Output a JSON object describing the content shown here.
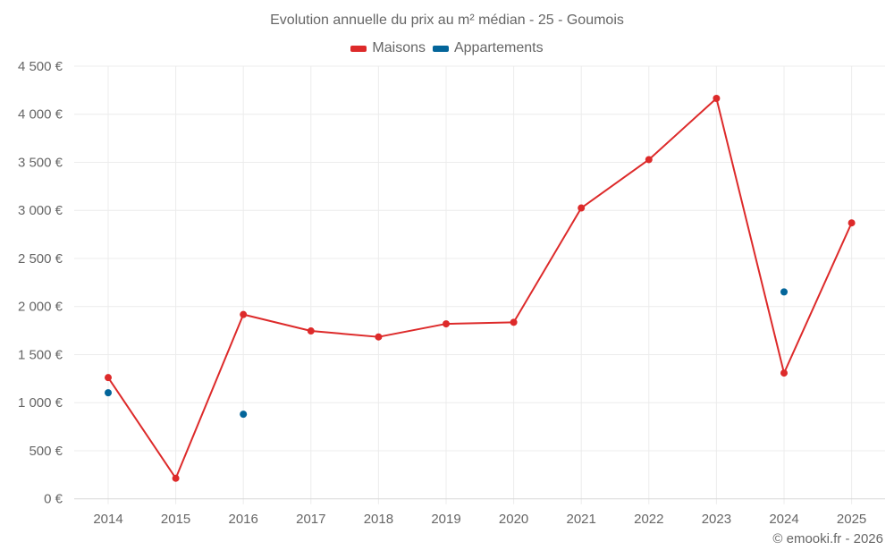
{
  "chart_data": {
    "type": "line",
    "title": "Evolution annuelle du prix au m² médian - 25 - Goumois",
    "xlabel": "",
    "ylabel": "",
    "categories": [
      "2014",
      "2015",
      "2016",
      "2017",
      "2018",
      "2019",
      "2020",
      "2021",
      "2022",
      "2023",
      "2024",
      "2025"
    ],
    "series": [
      {
        "name": "Maisons",
        "color": "#dd2a2a",
        "values": [
          1261,
          214,
          1917,
          1746,
          1684,
          1820,
          1836,
          3025,
          3528,
          4165,
          1308,
          2870
        ]
      },
      {
        "name": "Appartements",
        "color": "#03659a",
        "values": [
          1103,
          null,
          880,
          null,
          null,
          null,
          null,
          null,
          null,
          null,
          2152,
          null
        ]
      }
    ],
    "ylim": [
      0,
      4500
    ],
    "yticks": [
      0,
      500,
      1000,
      1500,
      2000,
      2500,
      3000,
      3500,
      4000,
      4500
    ],
    "ytick_labels": [
      "0 €",
      "500 €",
      "1 000 €",
      "1 500 €",
      "2 000 €",
      "2 500 €",
      "3 000 €",
      "3 500 €",
      "4 000 €",
      "4 500 €"
    ],
    "grid": true,
    "legend_position": "top-center"
  },
  "header": {
    "title": "Evolution annuelle du prix au m² médian - 25 - Goumois"
  },
  "legend": {
    "items": [
      {
        "label": "Maisons",
        "color": "#dd2a2a"
      },
      {
        "label": "Appartements",
        "color": "#03659a"
      }
    ]
  },
  "footer": {
    "credit": "© emooki.fr - 2026"
  }
}
